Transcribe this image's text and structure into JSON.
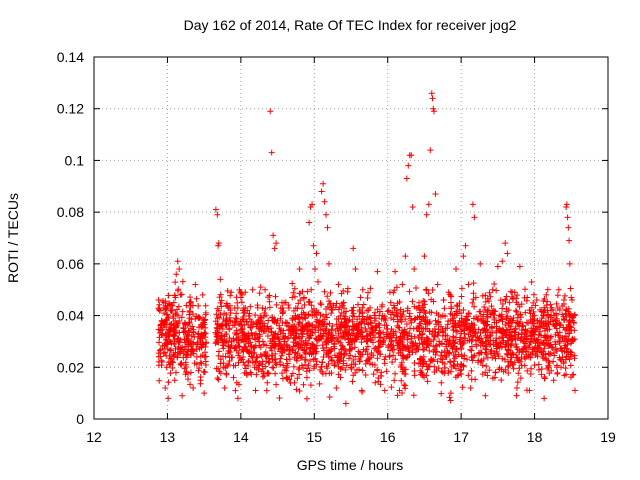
{
  "chart_data": {
    "type": "scatter",
    "title": "Day 162 of 2014, Rate Of TEC Index for receiver jog2",
    "xlabel": "GPS time / hours",
    "ylabel": "ROTI / TECUs",
    "xlim": [
      12,
      19
    ],
    "ylim": [
      0,
      0.14
    ],
    "xticks": [
      12,
      13,
      14,
      15,
      16,
      17,
      18,
      19
    ],
    "yticks": [
      0,
      0.02,
      0.04,
      0.06,
      0.08,
      0.1,
      0.12,
      0.14
    ],
    "xtick_labels": [
      "12",
      "13",
      "14",
      "15",
      "16",
      "17",
      "18",
      "19"
    ],
    "ytick_labels": [
      "0",
      "0.02",
      "0.04",
      "0.06",
      "0.08",
      "0.1",
      "0.12",
      "0.14"
    ],
    "grid": true,
    "marker": "+",
    "color": "#ff0000",
    "series": [
      {
        "name": "jog2",
        "points": [
          [
            12.88,
            0.046
          ],
          [
            12.9,
            0.042
          ],
          [
            12.92,
            0.038
          ],
          [
            12.95,
            0.045
          ],
          [
            12.97,
            0.012
          ],
          [
            12.99,
            0.02
          ],
          [
            13.01,
            0.008
          ],
          [
            13.03,
            0.03
          ],
          [
            13.05,
            0.044
          ],
          [
            13.08,
            0.025
          ],
          [
            13.1,
            0.015
          ],
          [
            13.12,
            0.056
          ],
          [
            13.14,
            0.061
          ],
          [
            13.16,
            0.058
          ],
          [
            13.18,
            0.048
          ],
          [
            13.2,
            0.009
          ],
          [
            13.22,
            0.035
          ],
          [
            13.25,
            0.021
          ],
          [
            13.28,
            0.031
          ],
          [
            13.3,
            0.045
          ],
          [
            13.32,
            0.018
          ],
          [
            13.35,
            0.012
          ],
          [
            13.38,
            0.052
          ],
          [
            13.4,
            0.027
          ],
          [
            13.42,
            0.039
          ],
          [
            13.45,
            0.015
          ],
          [
            13.48,
            0.048
          ],
          [
            13.5,
            0.01
          ],
          [
            13.52,
            0.033
          ],
          [
            13.66,
            0.081
          ],
          [
            13.68,
            0.079
          ],
          [
            13.69,
            0.067
          ],
          [
            13.7,
            0.068
          ],
          [
            13.72,
            0.054
          ],
          [
            13.74,
            0.036
          ],
          [
            13.76,
            0.02
          ],
          [
            13.78,
            0.012
          ],
          [
            13.8,
            0.044
          ],
          [
            13.83,
            0.028
          ],
          [
            13.86,
            0.041
          ],
          [
            13.9,
            0.016
          ],
          [
            13.93,
            0.039
          ],
          [
            13.96,
            0.008
          ],
          [
            14.0,
            0.047
          ],
          [
            14.03,
            0.024
          ],
          [
            14.06,
            0.049
          ],
          [
            14.1,
            0.033
          ],
          [
            14.13,
            0.018
          ],
          [
            14.16,
            0.05
          ],
          [
            14.2,
            0.011
          ],
          [
            14.23,
            0.043
          ],
          [
            14.27,
            0.051
          ],
          [
            14.3,
            0.03
          ],
          [
            14.33,
            0.05
          ],
          [
            14.36,
            0.014
          ],
          [
            14.4,
            0.119
          ],
          [
            14.42,
            0.103
          ],
          [
            14.44,
            0.071
          ],
          [
            14.46,
            0.066
          ],
          [
            14.48,
            0.068
          ],
          [
            14.5,
            0.038
          ],
          [
            14.53,
            0.022
          ],
          [
            14.56,
            0.045
          ],
          [
            14.6,
            0.019
          ],
          [
            14.63,
            0.037
          ],
          [
            14.66,
            0.027
          ],
          [
            14.7,
            0.047
          ],
          [
            14.73,
            0.014
          ],
          [
            14.76,
            0.033
          ],
          [
            14.8,
            0.058
          ],
          [
            14.83,
            0.024
          ],
          [
            14.86,
            0.047
          ],
          [
            14.9,
            0.016
          ],
          [
            14.93,
            0.076
          ],
          [
            14.95,
            0.082
          ],
          [
            14.97,
            0.083
          ],
          [
            14.99,
            0.067
          ],
          [
            15.01,
            0.058
          ],
          [
            15.03,
            0.064
          ],
          [
            15.05,
            0.041
          ],
          [
            15.08,
            0.019
          ],
          [
            15.1,
            0.088
          ],
          [
            15.12,
            0.091
          ],
          [
            15.14,
            0.084
          ],
          [
            15.16,
            0.079
          ],
          [
            15.18,
            0.074
          ],
          [
            15.2,
            0.06
          ],
          [
            15.23,
            0.031
          ],
          [
            15.26,
            0.044
          ],
          [
            15.3,
            0.012
          ],
          [
            15.33,
            0.052
          ],
          [
            15.36,
            0.024
          ],
          [
            15.4,
            0.045
          ],
          [
            15.43,
            0.006
          ],
          [
            15.46,
            0.036
          ],
          [
            15.5,
            0.02
          ],
          [
            15.53,
            0.066
          ],
          [
            15.56,
            0.058
          ],
          [
            15.6,
            0.033
          ],
          [
            15.63,
            0.047
          ],
          [
            15.66,
            0.05
          ],
          [
            15.7,
            0.017
          ],
          [
            15.73,
            0.028
          ],
          [
            15.76,
            0.043
          ],
          [
            15.8,
            0.034
          ],
          [
            15.83,
            0.014
          ],
          [
            15.86,
            0.057
          ],
          [
            15.9,
            0.025
          ],
          [
            15.93,
            0.04
          ],
          [
            15.96,
            0.011
          ],
          [
            16.0,
            0.032
          ],
          [
            16.03,
            0.049
          ],
          [
            16.06,
            0.022
          ],
          [
            16.1,
            0.057
          ],
          [
            16.13,
            0.036
          ],
          [
            16.16,
            0.011
          ],
          [
            16.2,
            0.052
          ],
          [
            16.24,
            0.063
          ],
          [
            16.26,
            0.093
          ],
          [
            16.28,
            0.098
          ],
          [
            16.3,
            0.102
          ],
          [
            16.32,
            0.102
          ],
          [
            16.34,
            0.082
          ],
          [
            16.36,
            0.058
          ],
          [
            16.4,
            0.027
          ],
          [
            16.43,
            0.043
          ],
          [
            16.46,
            0.018
          ],
          [
            16.5,
            0.063
          ],
          [
            16.53,
            0.079
          ],
          [
            16.56,
            0.083
          ],
          [
            16.58,
            0.104
          ],
          [
            16.6,
            0.126
          ],
          [
            16.61,
            0.124
          ],
          [
            16.62,
            0.12
          ],
          [
            16.63,
            0.119
          ],
          [
            16.65,
            0.087
          ],
          [
            16.68,
            0.052
          ],
          [
            16.7,
            0.03
          ],
          [
            16.73,
            0.014
          ],
          [
            16.76,
            0.046
          ],
          [
            16.8,
            0.024
          ],
          [
            16.83,
            0.049
          ],
          [
            16.86,
            0.01
          ],
          [
            16.9,
            0.037
          ],
          [
            16.93,
            0.058
          ],
          [
            16.96,
            0.017
          ],
          [
            17.0,
            0.033
          ],
          [
            17.03,
            0.063
          ],
          [
            17.06,
            0.067
          ],
          [
            17.1,
            0.052
          ],
          [
            17.13,
            0.012
          ],
          [
            17.16,
            0.083
          ],
          [
            17.18,
            0.078
          ],
          [
            17.2,
            0.047
          ],
          [
            17.23,
            0.022
          ],
          [
            17.26,
            0.06
          ],
          [
            17.3,
            0.038
          ],
          [
            17.33,
            0.009
          ],
          [
            17.36,
            0.042
          ],
          [
            17.4,
            0.026
          ],
          [
            17.43,
            0.05
          ],
          [
            17.46,
            0.016
          ],
          [
            17.5,
            0.059
          ],
          [
            17.53,
            0.034
          ],
          [
            17.56,
            0.061
          ],
          [
            17.6,
            0.068
          ],
          [
            17.63,
            0.064
          ],
          [
            17.66,
            0.045
          ],
          [
            17.7,
            0.021
          ],
          [
            17.73,
            0.049
          ],
          [
            17.76,
            0.012
          ],
          [
            17.8,
            0.059
          ],
          [
            17.83,
            0.036
          ],
          [
            17.86,
            0.024
          ],
          [
            17.9,
            0.047
          ],
          [
            17.93,
            0.011
          ],
          [
            17.96,
            0.053
          ],
          [
            18.0,
            0.031
          ],
          [
            18.03,
            0.046
          ],
          [
            18.06,
            0.019
          ],
          [
            18.1,
            0.039
          ],
          [
            18.13,
            0.008
          ],
          [
            18.16,
            0.048
          ],
          [
            18.2,
            0.025
          ],
          [
            18.23,
            0.043
          ],
          [
            18.26,
            0.015
          ],
          [
            18.3,
            0.035
          ],
          [
            18.33,
            0.05
          ],
          [
            18.36,
            0.02
          ],
          [
            18.4,
            0.046
          ],
          [
            18.43,
            0.082
          ],
          [
            18.44,
            0.083
          ],
          [
            18.45,
            0.078
          ],
          [
            18.46,
            0.074
          ],
          [
            18.47,
            0.069
          ],
          [
            18.48,
            0.06
          ],
          [
            18.5,
            0.047
          ],
          [
            18.52,
            0.017
          ],
          [
            18.54,
            0.04
          ],
          [
            18.55,
            0.011
          ]
        ]
      }
    ],
    "background_cloud": {
      "x_range": [
        12.88,
        18.55
      ],
      "gap_hours": [
        13.53,
        13.65
      ],
      "y_min": 0.005,
      "y_max": 0.05,
      "count": 2600
    }
  }
}
